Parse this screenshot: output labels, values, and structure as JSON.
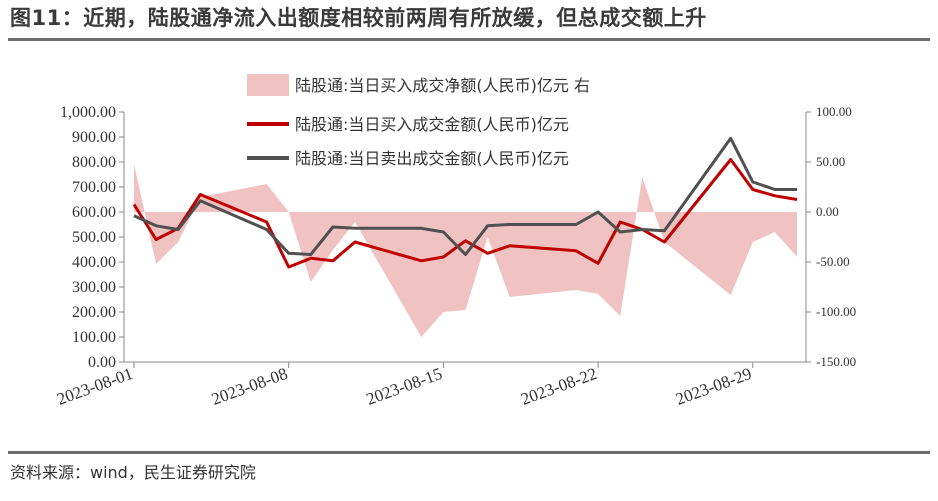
{
  "header": {
    "title": "图11：近期，陆股通净流入出额度相较前两周有所放缓，但总成交额上升"
  },
  "footer": {
    "source": "资料来源：wind，民生证券研究院"
  },
  "colors": {
    "area": "#f0c2c2",
    "buy_line": "#c00000",
    "sell_line": "#505050",
    "axis": "#888888"
  },
  "chart_data": {
    "type": "line",
    "x": [
      "2023-08-01",
      "2023-08-02",
      "2023-08-03",
      "2023-08-04",
      "2023-08-07",
      "2023-08-08",
      "2023-08-09",
      "2023-08-10",
      "2023-08-11",
      "2023-08-14",
      "2023-08-15",
      "2023-08-16",
      "2023-08-17",
      "2023-08-18",
      "2023-08-21",
      "2023-08-22",
      "2023-08-23",
      "2023-08-24",
      "2023-08-25",
      "2023-08-28",
      "2023-08-29",
      "2023-08-30",
      "2023-08-31"
    ],
    "x_tick_labels": [
      "2023-08-01",
      "2023-08-08",
      "2023-08-15",
      "2023-08-22",
      "2023-08-29"
    ],
    "legend": [
      "陆股通:当日买入成交净额(人民币)亿元 右",
      "陆股通:当日买入成交金额(人民币)亿元",
      "陆股通:当日卖出成交金额(人民币)亿元"
    ],
    "left_axis": {
      "ylim": [
        0,
        1000
      ],
      "ticks": [
        "0.00",
        "100.00",
        "200.00",
        "300.00",
        "400.00",
        "500.00",
        "600.00",
        "700.00",
        "800.00",
        "900.00",
        "1,000.00"
      ]
    },
    "right_axis": {
      "ylim": [
        -150,
        100
      ],
      "ticks": [
        "-150.00",
        "-100.00",
        "-50.00",
        "0.00",
        "50.00",
        "100.00"
      ]
    },
    "series": [
      {
        "name": "陆股通:当日买入成交净额(人民币)亿元 右",
        "axis": "right",
        "type": "area",
        "values": [
          48,
          -52,
          -30,
          15,
          28,
          0,
          -70,
          -38,
          -10,
          -125,
          -100,
          -98,
          -25,
          -85,
          -78,
          -82,
          -104,
          35,
          -30,
          -83,
          -30,
          -20,
          -45
        ]
      },
      {
        "name": "陆股通:当日买入成交金额(人民币)亿元",
        "axis": "left",
        "type": "line",
        "values": [
          630,
          490,
          535,
          670,
          560,
          380,
          415,
          405,
          480,
          405,
          420,
          485,
          435,
          465,
          445,
          395,
          560,
          530,
          480,
          810,
          690,
          665,
          650
        ]
      },
      {
        "name": "陆股通:当日卖出成交金额(人民币)亿元",
        "axis": "left",
        "type": "line",
        "values": [
          585,
          545,
          530,
          645,
          530,
          435,
          430,
          540,
          535,
          535,
          520,
          430,
          545,
          550,
          550,
          600,
          520,
          530,
          525,
          895,
          720,
          690,
          690
        ]
      }
    ]
  }
}
